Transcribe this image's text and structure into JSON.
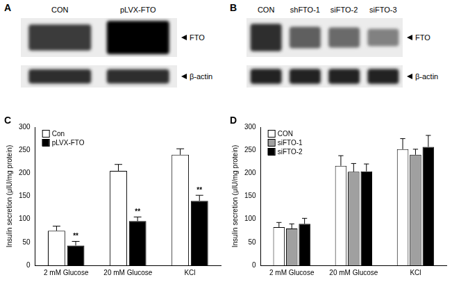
{
  "blots": [
    {
      "panel": "A",
      "lanes": [
        "CON",
        "pLVX-FTO"
      ],
      "bands": [
        {
          "label": "FTO",
          "intensity": [
            0.75,
            1.0
          ]
        },
        {
          "label": "β-actin",
          "intensity": [
            0.8,
            0.8
          ]
        }
      ]
    },
    {
      "panel": "B",
      "lanes": [
        "CON",
        "shFTO-1",
        "siFTO-2",
        "siFTO-3"
      ],
      "bands": [
        {
          "label": "FTO",
          "intensity": [
            0.8,
            0.6,
            0.55,
            0.45
          ]
        },
        {
          "label": "β-actin",
          "intensity": [
            0.85,
            0.85,
            0.85,
            0.85
          ]
        }
      ]
    }
  ],
  "chart_data": [
    {
      "panel": "C",
      "type": "bar",
      "y_label": "Insulin secretion (μIU/mg protein)",
      "categories": [
        "2 mM Glucose",
        "20 mM Glucose",
        "KCl"
      ],
      "series": [
        {
          "name": "Con",
          "color": "#ffffff",
          "values": [
            75,
            205,
            240
          ],
          "errors": [
            10,
            14,
            13
          ]
        },
        {
          "name": "pLVX-FTO",
          "color": "#000000",
          "values": [
            43,
            96,
            140
          ],
          "errors": [
            9,
            9,
            12
          ],
          "annotations": [
            "**",
            "**",
            "**"
          ]
        }
      ],
      "ylim": [
        0,
        300
      ],
      "yticks": [
        0,
        50,
        100,
        150,
        200,
        250,
        300
      ],
      "legend": "upper left",
      "grid": false
    },
    {
      "panel": "D",
      "type": "bar",
      "y_label": "Insulin secretion (μIU/mg protein)",
      "categories": [
        "2 mM Glucose",
        "20 mM Glucose",
        "KCl"
      ],
      "series": [
        {
          "name": "CON",
          "color": "#ffffff",
          "values": [
            83,
            216,
            252
          ],
          "errors": [
            10,
            22,
            23
          ]
        },
        {
          "name": "siFTO-1",
          "color": "#a0a0a0",
          "values": [
            80,
            203,
            240
          ],
          "errors": [
            10,
            18,
            12
          ]
        },
        {
          "name": "siFTO-2",
          "color": "#000000",
          "values": [
            90,
            204,
            257
          ],
          "errors": [
            12,
            16,
            25
          ]
        }
      ],
      "ylim": [
        0,
        300
      ],
      "yticks": [
        0,
        50,
        100,
        150,
        200,
        250,
        300
      ],
      "legend": "upper left",
      "grid": false
    }
  ]
}
